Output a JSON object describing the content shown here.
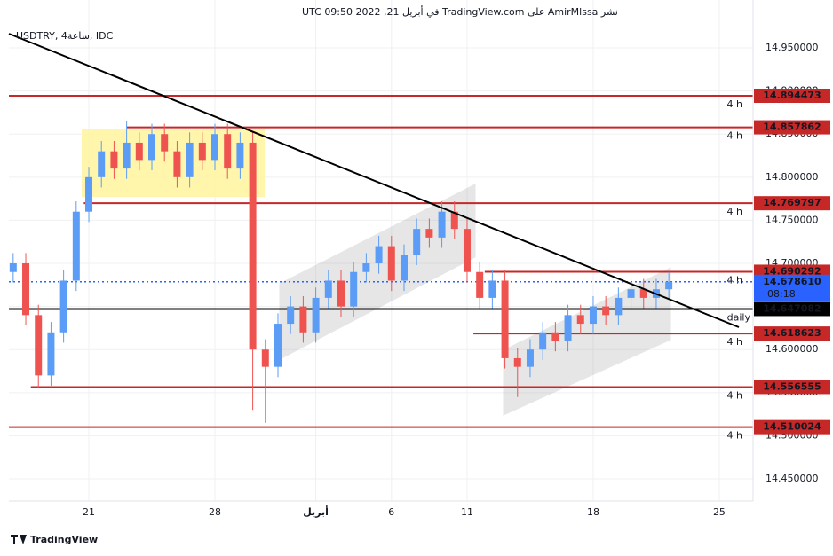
{
  "chart_data": {
    "type": "candlestick",
    "title": "نشر AmirMlssa على TradingView.com في أبريل 21, 2022 09:50 UTC",
    "subtitle": "USDTRY, 4ساعة, IDC",
    "brand": "TradingView",
    "up_color": "#5b9cf6",
    "down_color": "#ef5350",
    "level_color": "#c62828",
    "grid": true,
    "xlim": [
      -3.17,
      26.34
    ],
    "ylim": [
      14.4243,
      14.985
    ],
    "xticks": [
      {
        "value": 0,
        "label": "21"
      },
      {
        "value": 5,
        "label": "28"
      },
      {
        "value": 9,
        "label": "أبريل"
      },
      {
        "value": 12,
        "label": "6"
      },
      {
        "value": 15,
        "label": "11"
      },
      {
        "value": 20,
        "label": "18"
      },
      {
        "value": 25,
        "label": "25"
      }
    ],
    "yticks": [
      {
        "value": 14.45,
        "label": "14.450000"
      },
      {
        "value": 14.5,
        "label": "14.500000"
      },
      {
        "value": 14.55,
        "label": "14.550000"
      },
      {
        "value": 14.6,
        "label": "14.600000"
      },
      {
        "value": 14.65,
        "label": "14.650000"
      },
      {
        "value": 14.7,
        "label": "14.700000"
      },
      {
        "value": 14.75,
        "label": "14.750000"
      },
      {
        "value": 14.8,
        "label": "14.800000"
      },
      {
        "value": 14.85,
        "label": "14.850000"
      },
      {
        "value": 14.9,
        "label": "14.900000"
      },
      {
        "value": 14.95,
        "label": "14.950000"
      }
    ],
    "x": [
      -3,
      -2.5,
      -2,
      -1.5,
      -1,
      -0.5,
      0,
      0.5,
      1,
      1.5,
      2,
      2.5,
      3,
      3.5,
      4,
      4.5,
      5,
      5.5,
      6,
      6.5,
      7,
      7.5,
      8,
      8.5,
      9,
      9.5,
      10,
      10.5,
      11,
      11.5,
      12,
      12.5,
      13,
      13.5,
      14,
      14.5,
      15,
      15.5,
      16,
      16.5,
      17,
      17.5,
      18,
      18.5,
      19,
      19.5,
      20,
      20.5,
      21,
      21.5,
      22,
      22.5,
      23
    ],
    "open": [
      14.69,
      14.7,
      14.64,
      14.57,
      14.62,
      14.68,
      14.76,
      14.8,
      14.83,
      14.81,
      14.84,
      14.82,
      14.85,
      14.83,
      14.8,
      14.84,
      14.82,
      14.85,
      14.81,
      14.84,
      14.6,
      14.58,
      14.63,
      14.65,
      14.62,
      14.66,
      14.68,
      14.65,
      14.69,
      14.7,
      14.72,
      14.68,
      14.71,
      14.74,
      14.73,
      14.76,
      14.74,
      14.69,
      14.66,
      14.68,
      14.59,
      14.58,
      14.6,
      14.62,
      14.61,
      14.64,
      14.63,
      14.65,
      14.64,
      14.66,
      14.67,
      14.66,
      14.67
    ],
    "high": [
      14.712,
      14.712,
      14.652,
      14.632,
      14.692,
      14.772,
      14.812,
      14.842,
      14.842,
      14.865,
      14.852,
      14.862,
      14.862,
      14.842,
      14.852,
      14.852,
      14.862,
      14.862,
      14.852,
      14.852,
      14.612,
      14.642,
      14.662,
      14.662,
      14.672,
      14.692,
      14.692,
      14.702,
      14.712,
      14.732,
      14.732,
      14.722,
      14.752,
      14.752,
      14.772,
      14.772,
      14.752,
      14.702,
      14.692,
      14.692,
      14.602,
      14.612,
      14.632,
      14.632,
      14.652,
      14.652,
      14.662,
      14.662,
      14.672,
      14.682,
      14.682,
      14.682,
      14.69
    ],
    "low": [
      14.678,
      14.628,
      14.555,
      14.558,
      14.608,
      14.668,
      14.748,
      14.788,
      14.798,
      14.798,
      14.808,
      14.808,
      14.818,
      14.788,
      14.788,
      14.808,
      14.808,
      14.798,
      14.798,
      14.53,
      14.515,
      14.568,
      14.618,
      14.608,
      14.608,
      14.648,
      14.638,
      14.638,
      14.678,
      14.688,
      14.668,
      14.668,
      14.698,
      14.718,
      14.718,
      14.728,
      14.678,
      14.648,
      14.648,
      14.578,
      14.545,
      14.568,
      14.588,
      14.598,
      14.598,
      14.618,
      14.618,
      14.628,
      14.628,
      14.648,
      14.648,
      14.648,
      14.658
    ],
    "close": [
      14.7,
      14.64,
      14.57,
      14.62,
      14.68,
      14.76,
      14.8,
      14.83,
      14.81,
      14.84,
      14.82,
      14.85,
      14.83,
      14.8,
      14.84,
      14.82,
      14.85,
      14.81,
      14.84,
      14.6,
      14.58,
      14.63,
      14.65,
      14.62,
      14.66,
      14.68,
      14.65,
      14.69,
      14.7,
      14.72,
      14.68,
      14.71,
      14.74,
      14.73,
      14.76,
      14.74,
      14.69,
      14.66,
      14.68,
      14.59,
      14.58,
      14.6,
      14.62,
      14.61,
      14.64,
      14.63,
      14.65,
      14.64,
      14.66,
      14.67,
      14.66,
      14.67,
      14.6786
    ],
    "levels": [
      {
        "value": 14.894473,
        "tag": "4 h",
        "from": -3.17
      },
      {
        "value": 14.857862,
        "tag": "4 h",
        "from": 1.5
      },
      {
        "value": 14.769797,
        "tag": "4 h",
        "from": -0.2
      },
      {
        "value": 14.690292,
        "tag": "4 h",
        "from": 15.7
      },
      {
        "value": 14.618623,
        "tag": "4 h",
        "from": 15.25
      },
      {
        "value": 14.556555,
        "tag": "4 h",
        "from": -2.3
      },
      {
        "value": 14.510024,
        "tag": "4 h",
        "from": -3.17
      }
    ],
    "daily_level": {
      "value": 14.647082,
      "tag": "daily"
    },
    "last_price": {
      "value": 14.67861,
      "label": "14.678610",
      "countdown": "08:18",
      "color": "#2962ff"
    }
  }
}
